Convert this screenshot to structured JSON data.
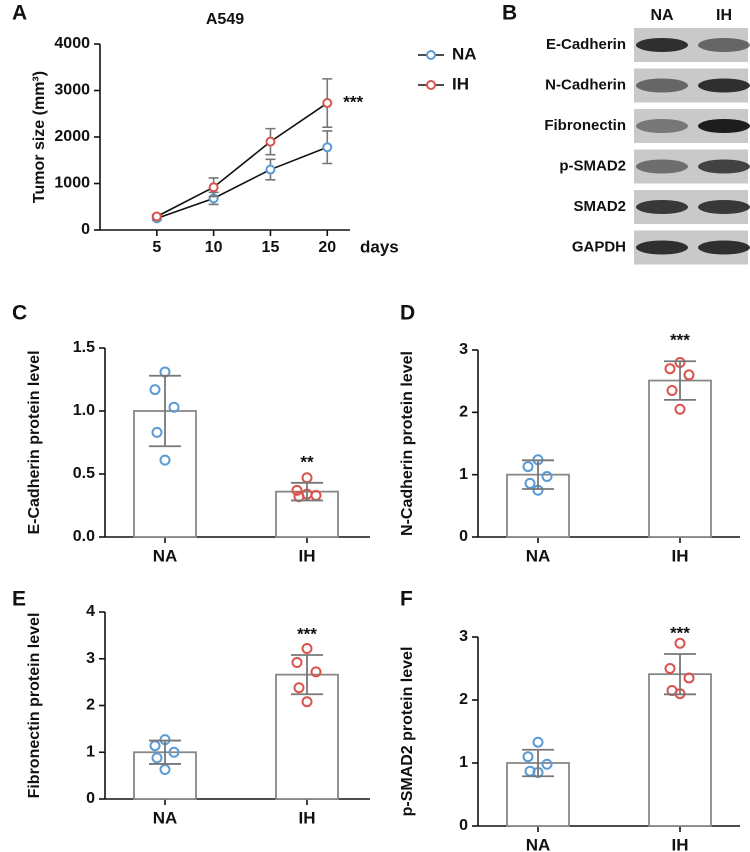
{
  "chart_data": [
    {
      "type": "line",
      "panel_label": "A",
      "title": "A549",
      "y_label": "Tumor size (mm³)",
      "x_label": "days",
      "x": [
        5,
        10,
        15,
        20
      ],
      "xlim": [
        0,
        22
      ],
      "xticks": [
        5,
        10,
        15,
        20
      ],
      "ylim": [
        0,
        4000
      ],
      "yticks": [
        0,
        1000,
        2000,
        3000,
        4000
      ],
      "series": [
        {
          "name": "NA",
          "color": "#5b9bd5",
          "values": [
            250,
            680,
            1300,
            1780
          ],
          "errors": [
            40,
            130,
            220,
            350
          ]
        },
        {
          "name": "IH",
          "color": "#d9534f",
          "values": [
            290,
            920,
            1900,
            2730
          ],
          "errors": [
            40,
            200,
            280,
            520
          ]
        }
      ],
      "annotation": "***"
    },
    {
      "type": "bar",
      "panel_label": "C",
      "y_label": "E-Cadherin protein level",
      "categories": [
        "NA",
        "IH"
      ],
      "values": [
        1.0,
        0.36
      ],
      "errors": [
        0.28,
        0.07
      ],
      "colors": [
        "#5b9bd5",
        "#d9534f"
      ],
      "points": [
        [
          1.31,
          1.17,
          1.03,
          0.83,
          0.61
        ],
        [
          0.47,
          0.37,
          0.33,
          0.32,
          0.34
        ]
      ],
      "ylim": [
        0,
        1.5
      ],
      "yticks": [
        {
          "value": 0,
          "label": "0.0"
        },
        {
          "value": 0.5,
          "label": "0.5"
        },
        {
          "value": 1,
          "label": "1.0"
        },
        {
          "value": 1.5,
          "label": "1.5"
        }
      ],
      "annotation": "**"
    },
    {
      "type": "bar",
      "panel_label": "D",
      "y_label": "N-Cadherin protein level",
      "categories": [
        "NA",
        "IH"
      ],
      "values": [
        1.0,
        2.51
      ],
      "errors": [
        0.23,
        0.31
      ],
      "colors": [
        "#5b9bd5",
        "#d9534f"
      ],
      "points": [
        [
          1.24,
          1.13,
          0.97,
          0.86,
          0.75
        ],
        [
          2.8,
          2.7,
          2.6,
          2.35,
          2.05
        ]
      ],
      "ylim": [
        0,
        3
      ],
      "yticks": [
        0,
        1,
        2,
        3
      ],
      "annotation": "***"
    },
    {
      "type": "bar",
      "panel_label": "E",
      "y_label": "Fibronectin protein level",
      "categories": [
        "NA",
        "IH"
      ],
      "values": [
        1.0,
        2.66
      ],
      "errors": [
        0.25,
        0.42
      ],
      "colors": [
        "#5b9bd5",
        "#d9534f"
      ],
      "points": [
        [
          1.27,
          1.14,
          1.0,
          0.88,
          0.63
        ],
        [
          3.22,
          2.92,
          2.72,
          2.38,
          2.08
        ]
      ],
      "ylim": [
        0,
        4
      ],
      "yticks": [
        0,
        1,
        2,
        3,
        4
      ],
      "annotation": "***"
    },
    {
      "type": "bar",
      "panel_label": "F",
      "y_label": "p-SMAD2 protein level",
      "categories": [
        "NA",
        "IH"
      ],
      "values": [
        1.0,
        2.41
      ],
      "errors": [
        0.21,
        0.32
      ],
      "colors": [
        "#5b9bd5",
        "#d9534f"
      ],
      "points": [
        [
          1.33,
          1.1,
          0.98,
          0.87,
          0.85
        ],
        [
          2.9,
          2.5,
          2.35,
          2.15,
          2.1
        ]
      ],
      "ylim": [
        0,
        3
      ],
      "yticks": [
        0,
        1,
        2,
        3
      ],
      "annotation": "***"
    }
  ],
  "blot": {
    "panel_label": "B",
    "columns": [
      "NA",
      "IH"
    ],
    "rows": [
      "E-Cadherin",
      "N-Cadherin",
      "Fibronectin",
      "p-SMAD2",
      "SMAD2",
      "GAPDH"
    ]
  }
}
